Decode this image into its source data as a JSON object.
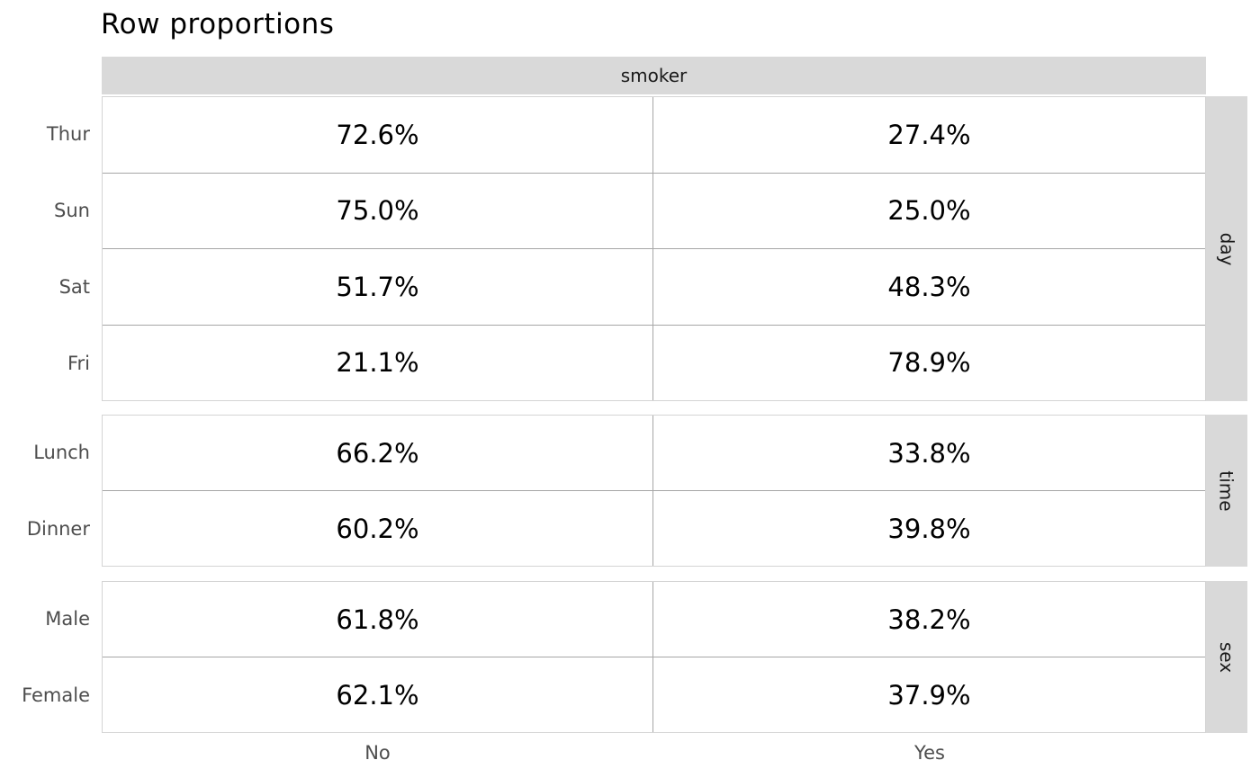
{
  "title": "Row proportions",
  "column_header": "smoker",
  "columns": {
    "no": "No",
    "yes": "Yes"
  },
  "groups": [
    {
      "name": "day",
      "rows": [
        {
          "label": "Thur",
          "no": "72.6%",
          "yes": "27.4%"
        },
        {
          "label": "Sun",
          "no": "75.0%",
          "yes": "25.0%"
        },
        {
          "label": "Sat",
          "no": "51.7%",
          "yes": "48.3%"
        },
        {
          "label": "Fri",
          "no": "21.1%",
          "yes": "78.9%"
        }
      ]
    },
    {
      "name": "time",
      "rows": [
        {
          "label": "Lunch",
          "no": "66.2%",
          "yes": "33.8%"
        },
        {
          "label": "Dinner",
          "no": "60.2%",
          "yes": "39.8%"
        }
      ]
    },
    {
      "name": "sex",
      "rows": [
        {
          "label": "Male",
          "no": "61.8%",
          "yes": "38.2%"
        },
        {
          "label": "Female",
          "no": "62.1%",
          "yes": "37.9%"
        }
      ]
    }
  ],
  "colors": {
    "strip_bg": "#d9d9d9",
    "strip_text": "#1a1a1a",
    "panel_border": "#d4d4d4",
    "grid_line": "#a6a6a6",
    "axis_label": "#4d4d4d",
    "value_text": "#000000"
  },
  "chart_data": {
    "type": "table",
    "title": "Row proportions",
    "column_group_label": "smoker",
    "columns": [
      "No",
      "Yes"
    ],
    "unit": "%",
    "row_groups": [
      {
        "group": "day",
        "rows": [
          "Thur",
          "Sun",
          "Sat",
          "Fri"
        ],
        "values": [
          [
            72.6,
            27.4
          ],
          [
            75.0,
            25.0
          ],
          [
            51.7,
            48.3
          ],
          [
            21.1,
            78.9
          ]
        ]
      },
      {
        "group": "time",
        "rows": [
          "Lunch",
          "Dinner"
        ],
        "values": [
          [
            66.2,
            33.8
          ],
          [
            60.2,
            39.8
          ]
        ]
      },
      {
        "group": "sex",
        "rows": [
          "Male",
          "Female"
        ],
        "values": [
          [
            61.8,
            38.2
          ],
          [
            62.1,
            37.9
          ]
        ]
      }
    ],
    "legend": "none",
    "grid": "panel borders with internal cell dividers",
    "layout": "faceted grid; facet strips (day/time/sex) on right, column header strip (smoker) on top"
  }
}
